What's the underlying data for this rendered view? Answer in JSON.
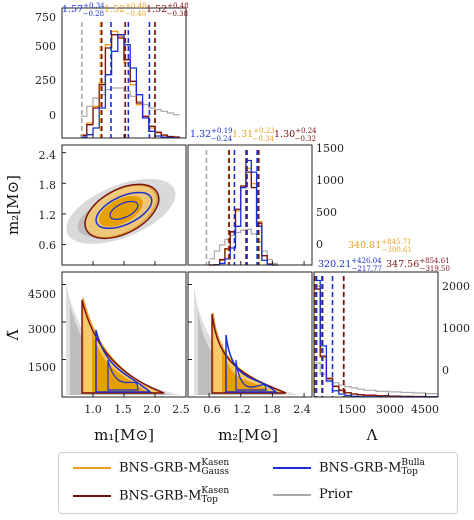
{
  "colors": {
    "kasen_gauss": "#e8a020",
    "kasen_top": "#7a0e0e",
    "bulla_top": "#1a2fd1",
    "prior": "#a8a8a8",
    "fill_dark": "#e69f00",
    "fill_light": "#f6c96b"
  },
  "axes": {
    "m1_label": "m₁[M⊙]",
    "m2_label": "m₂[M⊙]",
    "lambda_label": "Λ",
    "m2_ylabel": "m₂[M⊙]",
    "lambda_ylabel": "Λ̃",
    "m1_ticks": [
      "1.0",
      "1.5",
      "2.0",
      "2.5"
    ],
    "m2_ticks": [
      "0.6",
      "1.2",
      "1.8",
      "2.4"
    ],
    "lambda_ticks": [
      "1500",
      "3000",
      "4500"
    ],
    "hist1_yticks": [
      "750",
      "500",
      "250",
      "0"
    ],
    "hist2_yticks": [
      "1500",
      "1000",
      "500",
      "0"
    ],
    "hist3_yticks": [
      "2000",
      "1000",
      "0"
    ],
    "row2_yticks": [
      "2.4",
      "1.8",
      "1.2",
      "0.6"
    ],
    "row3_yticks": [
      "4500",
      "3000",
      "1500"
    ]
  },
  "summaries": {
    "m1": [
      {
        "text": "1.57",
        "sup": "+0.34",
        "sub": "−0.28",
        "color": "#1a2fd1"
      },
      {
        "text": "1.52",
        "sup": "+0.48",
        "sub": "−0.40",
        "color": "#e8a020"
      },
      {
        "text": "1.52",
        "sup": "+0.48",
        "sub": "−0.38",
        "color": "#7a0e0e"
      }
    ],
    "m2": [
      {
        "text": "1.32",
        "sup": "+0.19",
        "sub": "−0.24",
        "color": "#1a2fd1"
      },
      {
        "text": "1.31",
        "sup": "+0.23",
        "sub": "−0.34",
        "color": "#e8a020"
      },
      {
        "text": "1.30",
        "sup": "+0.24",
        "sub": "−0.32",
        "color": "#7a0e0e"
      }
    ],
    "lambda": [
      {
        "text": "320.21",
        "sup": "+426.04",
        "sub": "−217.77",
        "color": "#1a2fd1"
      },
      {
        "text": "340.81",
        "sup": "+845.71",
        "sub": "−300.61",
        "color": "#e8a020"
      },
      {
        "text": "347.56",
        "sup": "+854.61",
        "sub": "−319.50",
        "color": "#7a0e0e"
      }
    ]
  },
  "legend": {
    "kasen_gauss_base": "BNS-GRB-M",
    "kasen_gauss_sup": "Kasen",
    "kasen_gauss_sub": "Gauss",
    "bulla_top_base": "BNS-GRB-M",
    "bulla_top_sup": "Bulla",
    "bulla_top_sub": "Top",
    "kasen_top_base": "BNS-GRB-M",
    "kasen_top_sup": "Kasen",
    "kasen_top_sub": "Top",
    "prior": "Prior"
  },
  "chart_data": {
    "type": "corner",
    "parameters": [
      "m1",
      "m2",
      "Lambda"
    ],
    "ranges": {
      "m1": [
        0.5,
        2.5
      ],
      "m2": [
        0.2,
        2.55
      ],
      "Lambda": [
        0,
        5000
      ]
    },
    "series": [
      {
        "name": "BNS-GRB-M Kasen Gauss",
        "color": "#e8a020",
        "m1": {
          "median": 1.52,
          "plus": 0.48,
          "minus": 0.4
        },
        "m2": {
          "median": 1.31,
          "plus": 0.23,
          "minus": 0.34
        },
        "Lambda": {
          "median": 340.81,
          "plus": 845.71,
          "minus": 300.61
        }
      },
      {
        "name": "BNS-GRB-M Kasen Top",
        "color": "#7a0e0e",
        "m1": {
          "median": 1.52,
          "plus": 0.48,
          "minus": 0.38
        },
        "m2": {
          "median": 1.3,
          "plus": 0.24,
          "minus": 0.32
        },
        "Lambda": {
          "median": 347.56,
          "plus": 854.61,
          "minus": 319.5
        }
      },
      {
        "name": "BNS-GRB-M Bulla Top",
        "color": "#1a2fd1",
        "m1": {
          "median": 1.57,
          "plus": 0.34,
          "minus": 0.28
        },
        "m2": {
          "median": 1.32,
          "plus": 0.19,
          "minus": 0.24
        },
        "Lambda": {
          "median": 320.21,
          "plus": 426.04,
          "minus": 217.77
        }
      },
      {
        "name": "Prior",
        "color": "#a8a8a8"
      }
    ],
    "hist_y_max": {
      "m1": 750,
      "m2": 1500,
      "Lambda": 2000
    }
  }
}
